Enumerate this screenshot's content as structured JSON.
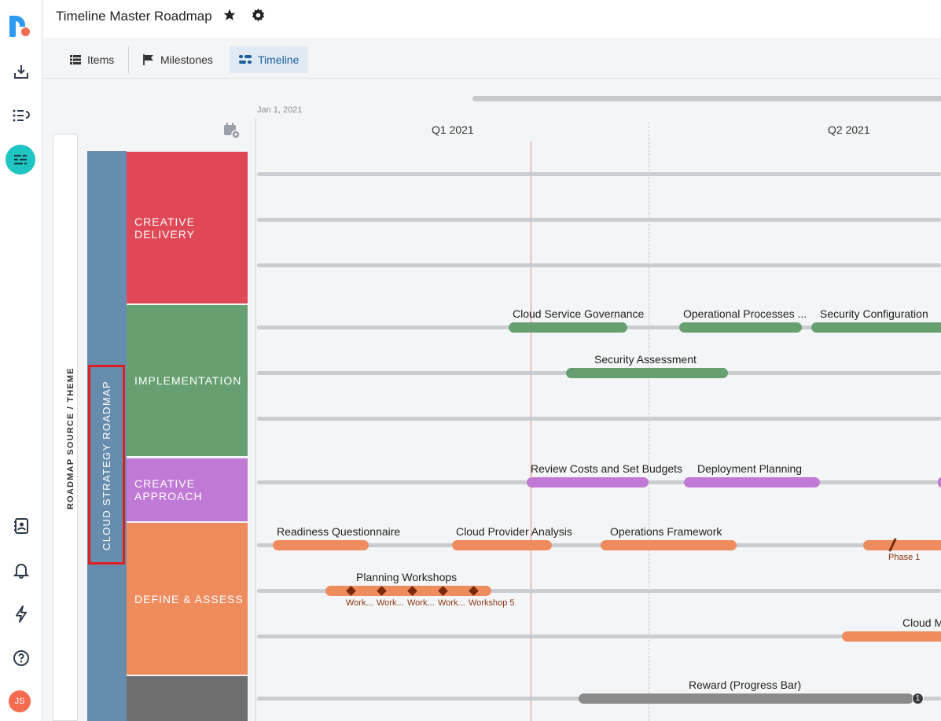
{
  "app": {
    "title": "Timeline Master Roadmap",
    "avatar_initials": "JS",
    "rail_icons": [
      "logo",
      "inbox-download-icon",
      "list-icon",
      "timeline-icon",
      "contacts-icon",
      "bell-icon",
      "lightning-icon",
      "help-icon"
    ]
  },
  "tabs": [
    {
      "label": "Items",
      "icon": "list-icon"
    },
    {
      "label": "Milestones",
      "icon": "flag-icon"
    },
    {
      "label": "Timeline",
      "icon": "timeline-icon",
      "selected": true
    }
  ],
  "timeline": {
    "start_date": "Jan 1, 2021",
    "quarters": [
      "Q1 2021",
      "Q2 2021"
    ],
    "source_header": "ROADMAP SOURCE / THEME",
    "theme": "CLOUD STRATEGY ROADMAP",
    "lanes": [
      {
        "name": "CREATIVE DELIVERY",
        "color": "#e14857"
      },
      {
        "name": "IMPLEMENTATION",
        "color": "#67a070"
      },
      {
        "name": "CREATIVE APPROACH",
        "color": "#c07ad6"
      },
      {
        "name": "DEFINE & ASSESS",
        "color": "#ee8c5e"
      },
      {
        "name": "",
        "color": "#6e6e6e"
      }
    ],
    "bars": [
      {
        "label": "Cloud Service Governance",
        "color": "#67a070"
      },
      {
        "label": "Operational Processes ...",
        "color": "#67a070"
      },
      {
        "label": "Security Configuration",
        "color": "#67a070"
      },
      {
        "label": "Security Assessment",
        "color": "#67a070"
      },
      {
        "label": "Review Costs and Set Budgets",
        "color": "#c07ad6"
      },
      {
        "label": "Deployment Planning",
        "color": "#c07ad6"
      },
      {
        "label": "Readiness Questionnaire",
        "color": "#ee8c5e"
      },
      {
        "label": "Cloud Provider Analysis",
        "color": "#ee8c5e"
      },
      {
        "label": "Operations Framework",
        "color": "#ee8c5e"
      },
      {
        "label": "Planning Workshops",
        "color": "#ee8c5e"
      },
      {
        "label": "Cloud M",
        "color": "#ee8c5e"
      },
      {
        "label": "Reward (Progress Bar)",
        "color": "#8a8a8a"
      }
    ],
    "milestones": {
      "phase": "Phase 1",
      "workshops": [
        "Work...",
        "Work...",
        "Work...",
        "Work...",
        "Workshop 5"
      ]
    },
    "reward_badge": "1"
  }
}
